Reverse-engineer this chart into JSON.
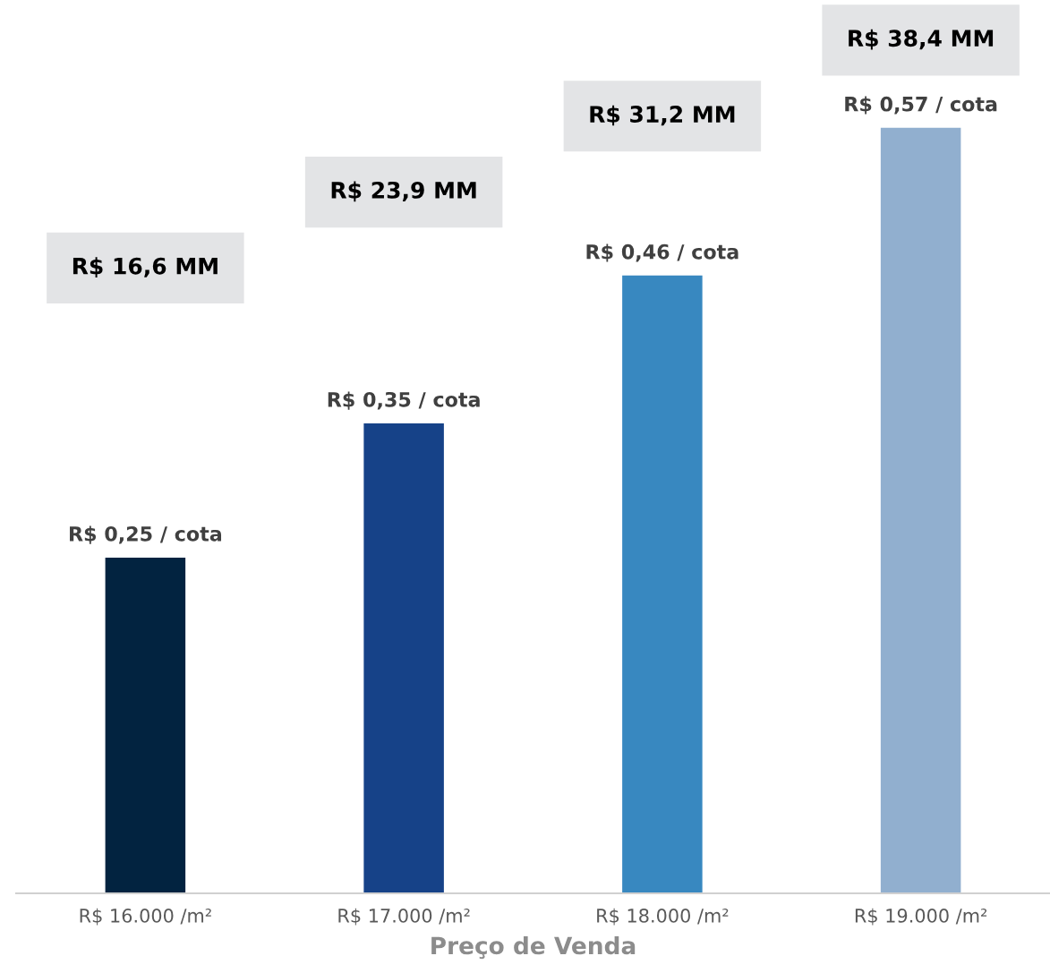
{
  "chart_data": {
    "type": "bar",
    "xlabel": "Preço de Venda",
    "categories": [
      "R$ 16.000 /m²",
      "R$ 17.000 /m²",
      "R$ 18.000 /m²",
      "R$ 19.000 /m²"
    ],
    "values": [
      0.25,
      0.35,
      0.46,
      0.57
    ],
    "colors": [
      "#022340",
      "#164288",
      "#3888c0",
      "#91afcf"
    ],
    "value_labels": [
      "R$ 0,25 / cota",
      "R$ 0,35 / cota",
      "R$ 0,46 / cota",
      "R$ 0,57 / cota"
    ],
    "annotations": [
      "R$ 16,6 MM",
      "R$ 23,9 MM",
      "R$ 31,2 MM",
      "R$ 38,4 MM"
    ],
    "grid": false,
    "legend": false
  }
}
